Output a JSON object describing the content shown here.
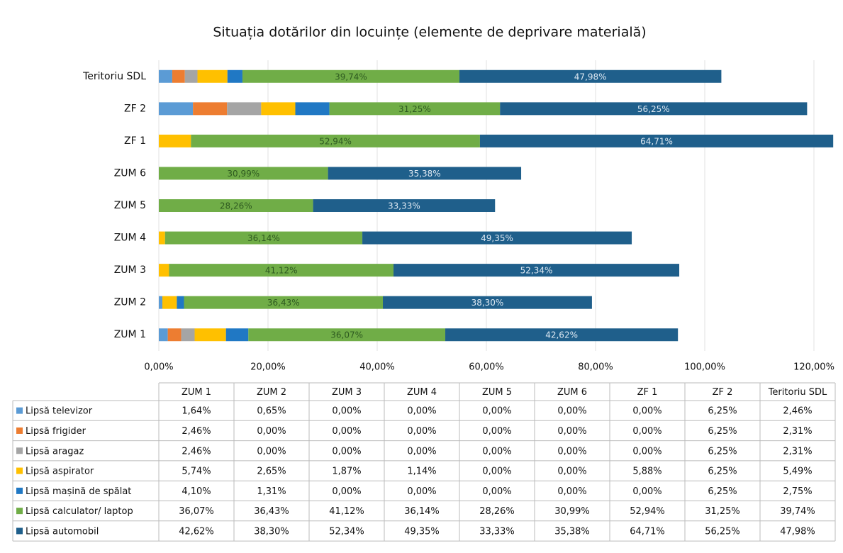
{
  "chart_data": {
    "type": "stacked_bar_horizontal",
    "title": "Situația dotărilor din locuințe (elemente de deprivare materială)",
    "categories": [
      "ZUM 1",
      "ZUM 2",
      "ZUM 3",
      "ZUM 4",
      "ZUM 5",
      "ZUM 6",
      "ZF 1",
      "ZF 2",
      "Teritoriu SDL"
    ],
    "series": [
      {
        "name": "Lipsă televizor",
        "color": "#5b9bd5",
        "values": [
          1.64,
          0.65,
          0,
          0,
          0,
          0,
          0,
          6.25,
          2.46
        ],
        "value_labels": [
          "1,64%",
          "0,65%",
          "0,00%",
          "0,00%",
          "0,00%",
          "0,00%",
          "0,00%",
          "6,25%",
          "2,46%"
        ]
      },
      {
        "name": "Lipsă frigider",
        "color": "#ed7d31",
        "values": [
          2.46,
          0,
          0,
          0,
          0,
          0,
          0,
          6.25,
          2.31
        ],
        "value_labels": [
          "2,46%",
          "0,00%",
          "0,00%",
          "0,00%",
          "0,00%",
          "0,00%",
          "0,00%",
          "6,25%",
          "2,31%"
        ]
      },
      {
        "name": "Lipsă aragaz",
        "color": "#a5a5a5",
        "values": [
          2.46,
          0,
          0,
          0,
          0,
          0,
          0,
          6.25,
          2.31
        ],
        "value_labels": [
          "2,46%",
          "0,00%",
          "0,00%",
          "0,00%",
          "0,00%",
          "0,00%",
          "0,00%",
          "6,25%",
          "2,31%"
        ]
      },
      {
        "name": "Lipsă aspirator",
        "color": "#ffc000",
        "values": [
          5.74,
          2.65,
          1.87,
          1.14,
          0,
          0,
          5.88,
          6.25,
          5.49
        ],
        "value_labels": [
          "5,74%",
          "2,65%",
          "1,87%",
          "1,14%",
          "0,00%",
          "0,00%",
          "5,88%",
          "6,25%",
          "5,49%"
        ]
      },
      {
        "name": "Lipsă mașină de spălat",
        "color": "#2078c4",
        "values": [
          4.1,
          1.31,
          0,
          0,
          0,
          0,
          0,
          6.25,
          2.75
        ],
        "value_labels": [
          "4,10%",
          "1,31%",
          "0,00%",
          "0,00%",
          "0,00%",
          "0,00%",
          "0,00%",
          "6,25%",
          "2,75%"
        ]
      },
      {
        "name": "Lipsă calculator/ laptop",
        "color": "#70ad47",
        "values": [
          36.07,
          36.43,
          41.12,
          36.14,
          28.26,
          30.99,
          52.94,
          31.25,
          39.74
        ],
        "value_labels": [
          "36,07%",
          "36,43%",
          "41,12%",
          "36,14%",
          "28,26%",
          "30,99%",
          "52,94%",
          "31,25%",
          "39,74%"
        ]
      },
      {
        "name": "Lipsă automobil",
        "color": "#1f5f8b",
        "values": [
          42.62,
          38.3,
          52.34,
          49.35,
          33.33,
          35.38,
          64.71,
          56.25,
          47.98
        ],
        "value_labels": [
          "42,62%",
          "38,30%",
          "52,34%",
          "49,35%",
          "33,33%",
          "35,38%",
          "64,71%",
          "56,25%",
          "47,98%"
        ]
      }
    ],
    "xlim": [
      0,
      120
    ],
    "xticks": [
      {
        "value": 0,
        "label": "0,00%"
      },
      {
        "value": 20,
        "label": "20,00%"
      },
      {
        "value": 40,
        "label": "40,00%"
      },
      {
        "value": 60,
        "label": "60,00%"
      },
      {
        "value": 80,
        "label": "80,00%"
      },
      {
        "value": 100,
        "label": "100,00%"
      },
      {
        "value": 120,
        "label": "120,00%"
      }
    ],
    "grid": true
  }
}
